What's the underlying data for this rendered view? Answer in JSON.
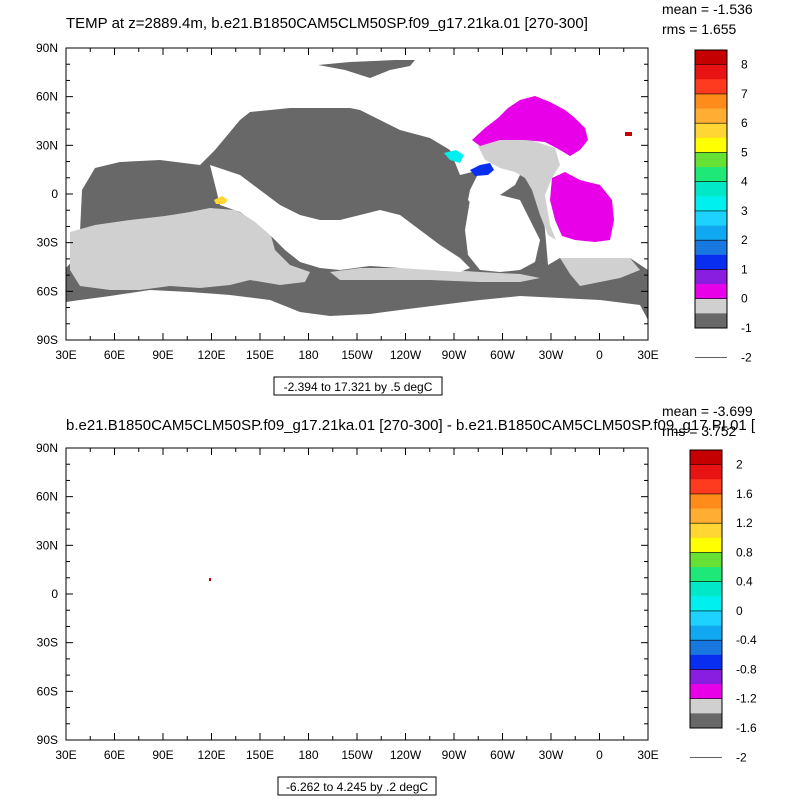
{
  "chart_data": [
    {
      "type": "heatmap",
      "title": "TEMP at z=2889.4m, b.e21.B1850CAM5CLM50SP.f09_g17.21ka.01 [270-300]",
      "stats": {
        "mean": "mean = -1.536",
        "rms": "rms = 1.655"
      },
      "range_note": "-2.394 to 17.321 by .5 degC",
      "xticks": [
        "30E",
        "60E",
        "90E",
        "120E",
        "150E",
        "180",
        "150W",
        "120W",
        "90W",
        "60W",
        "30W",
        "0",
        "30E"
      ],
      "yticks": [
        "90N",
        "60N",
        "30N",
        "0",
        "30S",
        "60S",
        "90S"
      ],
      "x_range_deg": [
        30,
        390
      ],
      "y_range_deg": [
        -90,
        90
      ],
      "colorbar": {
        "labels": [
          "8",
          "7",
          "6",
          "5",
          "4",
          "3",
          "2",
          "1",
          "0",
          "-1",
          "-2"
        ],
        "colors": [
          "#c40000",
          "#e81414",
          "#ff3b1f",
          "#ff8c1a",
          "#ffad33",
          "#ffd633",
          "#ffff00",
          "#66e032",
          "#1ee878",
          "#00e8c8",
          "#00f0f0",
          "#1ed2ff",
          "#10a8f0",
          "#1878e0",
          "#0a2ef0",
          "#8a1ee0",
          "#e800e8",
          "#d0d0d0",
          "#686868"
        ]
      }
    },
    {
      "type": "heatmap",
      "title": "b.e21.B1850CAM5CLM50SP.f09_g17.21ka.01 [270-300] - b.e21.B1850CAM5CLM50SP.f09_g17.PI.01 [",
      "stats": {
        "mean": "mean = -3.699",
        "rms": "rms = 3.752"
      },
      "range_note": "-6.262 to 4.245 by .2 degC",
      "xticks": [
        "30E",
        "60E",
        "90E",
        "120E",
        "150E",
        "180",
        "150W",
        "120W",
        "90W",
        "60W",
        "30W",
        "0",
        "30E"
      ],
      "yticks": [
        "90N",
        "60N",
        "30N",
        "0",
        "30S",
        "60S",
        "90S"
      ],
      "x_range_deg": [
        30,
        390
      ],
      "y_range_deg": [
        -90,
        90
      ],
      "colorbar": {
        "labels": [
          "2",
          "1.6",
          "1.2",
          "0.8",
          "0.4",
          "0",
          "-0.4",
          "-0.8",
          "-1.2",
          "-1.6",
          "-2"
        ],
        "colors": [
          "#c40000",
          "#e81414",
          "#ff3b1f",
          "#ff8c1a",
          "#ffad33",
          "#ffd633",
          "#ffff00",
          "#66e032",
          "#1ee878",
          "#00e8c8",
          "#00f0f0",
          "#1ed2ff",
          "#10a8f0",
          "#1878e0",
          "#0a2ef0",
          "#8a1ee0",
          "#e800e8",
          "#d0d0d0",
          "#686868"
        ]
      }
    }
  ]
}
